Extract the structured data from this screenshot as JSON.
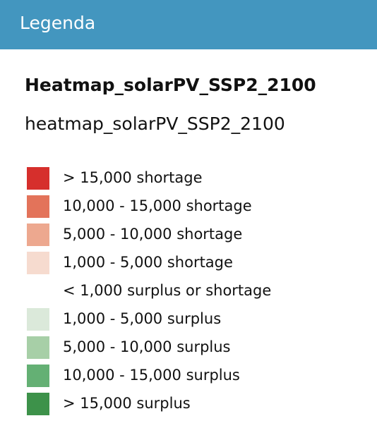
{
  "header": {
    "title": "Legenda"
  },
  "layer": {
    "title": "Heatmap_solarPV_SSP2_2100",
    "subtitle": "heatmap_solarPV_SSP2_2100",
    "items": [
      {
        "label": "> 15,000 shortage",
        "color": "#d62f2c"
      },
      {
        "label": "10,000 - 15,000 shortage",
        "color": "#e3735a"
      },
      {
        "label": "5,000 - 10,000 shortage",
        "color": "#eda88f"
      },
      {
        "label": "1,000 - 5,000 shortage",
        "color": "#f6dbcf"
      },
      {
        "label": "< 1,000 surplus or shortage",
        "color": null
      },
      {
        "label": "1,000 - 5,000 surplus",
        "color": "#dbe9da"
      },
      {
        "label": "5,000 - 10,000 surplus",
        "color": "#a7cfa7"
      },
      {
        "label": "10,000 - 15,000 surplus",
        "color": "#64b074"
      },
      {
        "label": "> 15,000 surplus",
        "color": "#3d924a"
      }
    ]
  }
}
